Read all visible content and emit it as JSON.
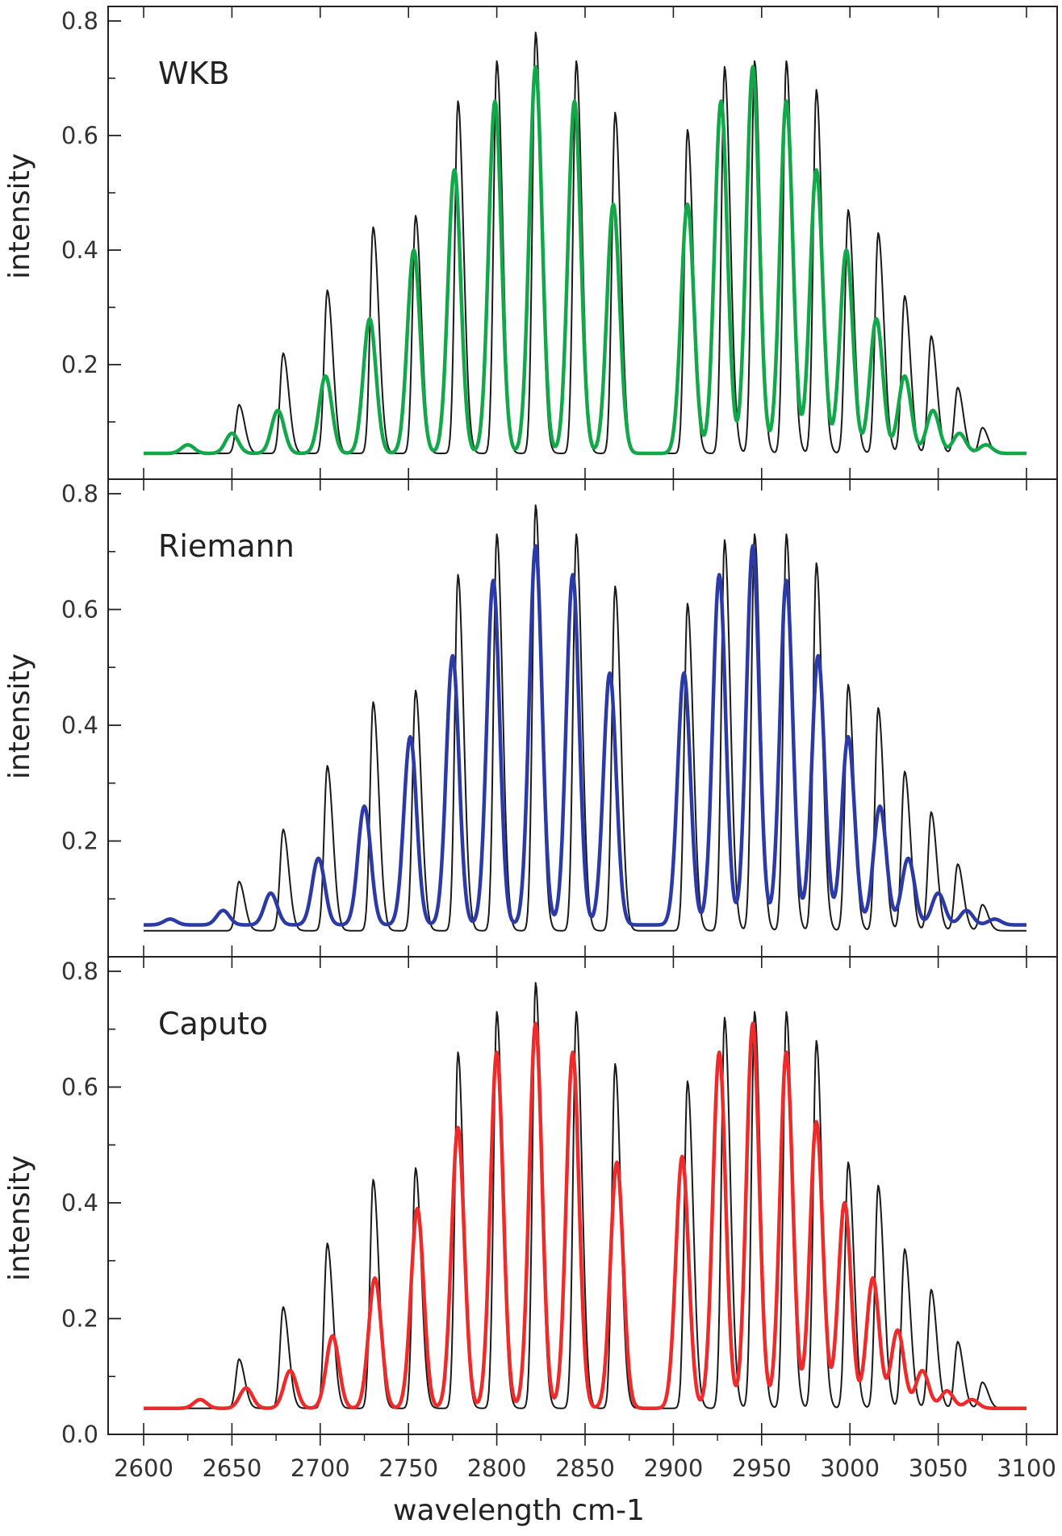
{
  "figure": {
    "xlabel": "wavelength cm-1",
    "ylabel": "intensity"
  },
  "chart_data": [
    {
      "type": "line",
      "title": "WKB",
      "xlabel": "wavelength cm-1",
      "ylabel": "intensity",
      "xlim": [
        2600,
        3100
      ],
      "ylim": [
        0,
        0.8
      ],
      "x_ticks": [
        2600,
        2650,
        2700,
        2750,
        2800,
        2850,
        2900,
        2950,
        3000,
        3050,
        3100
      ],
      "y_ticks": [
        0.2,
        0.4,
        0.6,
        0.8
      ],
      "grid": false,
      "series": [
        {
          "color": "#1a1a1a",
          "kind": "experimental",
          "baseline": 0.045,
          "peaks": [
            {
              "x": 2654,
              "y": 0.13
            },
            {
              "x": 2679,
              "y": 0.22
            },
            {
              "x": 2704,
              "y": 0.33
            },
            {
              "x": 2730,
              "y": 0.44
            },
            {
              "x": 2754,
              "y": 0.46
            },
            {
              "x": 2778,
              "y": 0.66
            },
            {
              "x": 2800,
              "y": 0.73
            },
            {
              "x": 2822,
              "y": 0.78
            },
            {
              "x": 2845,
              "y": 0.73
            },
            {
              "x": 2867,
              "y": 0.64
            },
            {
              "x": 2908,
              "y": 0.61
            },
            {
              "x": 2929,
              "y": 0.72
            },
            {
              "x": 2946,
              "y": 0.73
            },
            {
              "x": 2964,
              "y": 0.73
            },
            {
              "x": 2981,
              "y": 0.68
            },
            {
              "x": 2999,
              "y": 0.47
            },
            {
              "x": 3016,
              "y": 0.43
            },
            {
              "x": 3031,
              "y": 0.32
            },
            {
              "x": 3046,
              "y": 0.25
            },
            {
              "x": 3061,
              "y": 0.16
            },
            {
              "x": 3075,
              "y": 0.09
            }
          ]
        },
        {
          "color": "#12a84a",
          "kind": "fit",
          "baseline": 0.045,
          "peaks": [
            {
              "x": 2625,
              "y": 0.06
            },
            {
              "x": 2650,
              "y": 0.08
            },
            {
              "x": 2676,
              "y": 0.12
            },
            {
              "x": 2703,
              "y": 0.18
            },
            {
              "x": 2728,
              "y": 0.28
            },
            {
              "x": 2753,
              "y": 0.4
            },
            {
              "x": 2776,
              "y": 0.54
            },
            {
              "x": 2799,
              "y": 0.66
            },
            {
              "x": 2822,
              "y": 0.72
            },
            {
              "x": 2844,
              "y": 0.66
            },
            {
              "x": 2866,
              "y": 0.48
            },
            {
              "x": 2908,
              "y": 0.48
            },
            {
              "x": 2927,
              "y": 0.66
            },
            {
              "x": 2945,
              "y": 0.72
            },
            {
              "x": 2964,
              "y": 0.66
            },
            {
              "x": 2981,
              "y": 0.54
            },
            {
              "x": 2998,
              "y": 0.4
            },
            {
              "x": 3015,
              "y": 0.28
            },
            {
              "x": 3031,
              "y": 0.18
            },
            {
              "x": 3047,
              "y": 0.12
            },
            {
              "x": 3062,
              "y": 0.08
            },
            {
              "x": 3077,
              "y": 0.06
            }
          ]
        }
      ]
    },
    {
      "type": "line",
      "title": "Riemann",
      "xlabel": "wavelength cm-1",
      "ylabel": "intensity",
      "xlim": [
        2600,
        3100
      ],
      "ylim": [
        0,
        0.8
      ],
      "x_ticks": [
        2600,
        2650,
        2700,
        2750,
        2800,
        2850,
        2900,
        2950,
        3000,
        3050,
        3100
      ],
      "y_ticks": [
        0.2,
        0.4,
        0.6,
        0.8
      ],
      "grid": false,
      "series": [
        {
          "color": "#1a1a1a",
          "kind": "experimental",
          "baseline": 0.045,
          "peaks": [
            {
              "x": 2654,
              "y": 0.13
            },
            {
              "x": 2679,
              "y": 0.22
            },
            {
              "x": 2704,
              "y": 0.33
            },
            {
              "x": 2730,
              "y": 0.44
            },
            {
              "x": 2754,
              "y": 0.46
            },
            {
              "x": 2778,
              "y": 0.66
            },
            {
              "x": 2800,
              "y": 0.73
            },
            {
              "x": 2822,
              "y": 0.78
            },
            {
              "x": 2845,
              "y": 0.73
            },
            {
              "x": 2867,
              "y": 0.64
            },
            {
              "x": 2908,
              "y": 0.61
            },
            {
              "x": 2929,
              "y": 0.72
            },
            {
              "x": 2946,
              "y": 0.73
            },
            {
              "x": 2964,
              "y": 0.73
            },
            {
              "x": 2981,
              "y": 0.68
            },
            {
              "x": 2999,
              "y": 0.47
            },
            {
              "x": 3016,
              "y": 0.43
            },
            {
              "x": 3031,
              "y": 0.32
            },
            {
              "x": 3046,
              "y": 0.25
            },
            {
              "x": 3061,
              "y": 0.16
            },
            {
              "x": 3075,
              "y": 0.09
            }
          ]
        },
        {
          "color": "#2b3aa5",
          "kind": "fit",
          "baseline": 0.055,
          "peaks": [
            {
              "x": 2615,
              "y": 0.065
            },
            {
              "x": 2645,
              "y": 0.08
            },
            {
              "x": 2672,
              "y": 0.11
            },
            {
              "x": 2699,
              "y": 0.17
            },
            {
              "x": 2725,
              "y": 0.26
            },
            {
              "x": 2751,
              "y": 0.38
            },
            {
              "x": 2775,
              "y": 0.52
            },
            {
              "x": 2798,
              "y": 0.65
            },
            {
              "x": 2822,
              "y": 0.71
            },
            {
              "x": 2843,
              "y": 0.66
            },
            {
              "x": 2864,
              "y": 0.49
            },
            {
              "x": 2906,
              "y": 0.49
            },
            {
              "x": 2926,
              "y": 0.66
            },
            {
              "x": 2945,
              "y": 0.71
            },
            {
              "x": 2964,
              "y": 0.65
            },
            {
              "x": 2982,
              "y": 0.52
            },
            {
              "x": 2999,
              "y": 0.38
            },
            {
              "x": 3017,
              "y": 0.26
            },
            {
              "x": 3033,
              "y": 0.17
            },
            {
              "x": 3050,
              "y": 0.11
            },
            {
              "x": 3066,
              "y": 0.08
            },
            {
              "x": 3082,
              "y": 0.065
            }
          ]
        }
      ]
    },
    {
      "type": "line",
      "title": "Caputo",
      "xlabel": "wavelength cm-1",
      "ylabel": "intensity",
      "xlim": [
        2600,
        3100
      ],
      "ylim": [
        0,
        0.8
      ],
      "x_ticks": [
        2600,
        2650,
        2700,
        2750,
        2800,
        2850,
        2900,
        2950,
        3000,
        3050,
        3100
      ],
      "y_ticks": [
        0.0,
        0.2,
        0.4,
        0.6,
        0.8
      ],
      "grid": false,
      "series": [
        {
          "color": "#1a1a1a",
          "kind": "experimental",
          "baseline": 0.045,
          "peaks": [
            {
              "x": 2654,
              "y": 0.13
            },
            {
              "x": 2679,
              "y": 0.22
            },
            {
              "x": 2704,
              "y": 0.33
            },
            {
              "x": 2730,
              "y": 0.44
            },
            {
              "x": 2754,
              "y": 0.46
            },
            {
              "x": 2778,
              "y": 0.66
            },
            {
              "x": 2800,
              "y": 0.73
            },
            {
              "x": 2822,
              "y": 0.78
            },
            {
              "x": 2845,
              "y": 0.73
            },
            {
              "x": 2867,
              "y": 0.64
            },
            {
              "x": 2908,
              "y": 0.61
            },
            {
              "x": 2929,
              "y": 0.72
            },
            {
              "x": 2946,
              "y": 0.73
            },
            {
              "x": 2964,
              "y": 0.73
            },
            {
              "x": 2981,
              "y": 0.68
            },
            {
              "x": 2999,
              "y": 0.47
            },
            {
              "x": 3016,
              "y": 0.43
            },
            {
              "x": 3031,
              "y": 0.32
            },
            {
              "x": 3046,
              "y": 0.25
            },
            {
              "x": 3061,
              "y": 0.16
            },
            {
              "x": 3075,
              "y": 0.09
            }
          ]
        },
        {
          "color": "#ee2b2b",
          "kind": "fit",
          "baseline": 0.045,
          "peaks": [
            {
              "x": 2632,
              "y": 0.06
            },
            {
              "x": 2658,
              "y": 0.08
            },
            {
              "x": 2683,
              "y": 0.11
            },
            {
              "x": 2707,
              "y": 0.17
            },
            {
              "x": 2731,
              "y": 0.27
            },
            {
              "x": 2755,
              "y": 0.39
            },
            {
              "x": 2778,
              "y": 0.53
            },
            {
              "x": 2800,
              "y": 0.66
            },
            {
              "x": 2822,
              "y": 0.71
            },
            {
              "x": 2843,
              "y": 0.66
            },
            {
              "x": 2868,
              "y": 0.47
            },
            {
              "x": 2905,
              "y": 0.48
            },
            {
              "x": 2926,
              "y": 0.66
            },
            {
              "x": 2945,
              "y": 0.71
            },
            {
              "x": 2964,
              "y": 0.66
            },
            {
              "x": 2981,
              "y": 0.54
            },
            {
              "x": 2997,
              "y": 0.4
            },
            {
              "x": 3013,
              "y": 0.27
            },
            {
              "x": 3027,
              "y": 0.18
            },
            {
              "x": 3041,
              "y": 0.11
            },
            {
              "x": 3055,
              "y": 0.075
            },
            {
              "x": 3069,
              "y": 0.06
            }
          ]
        }
      ]
    }
  ]
}
